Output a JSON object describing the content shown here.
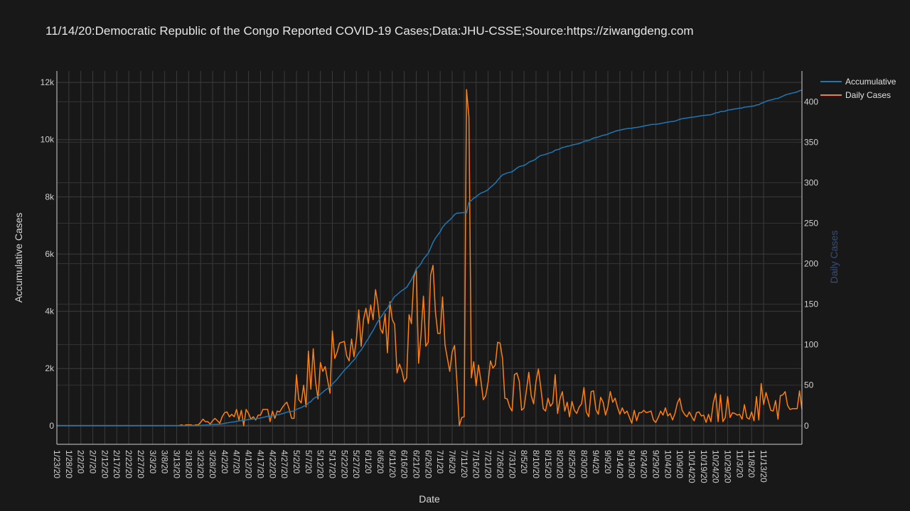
{
  "title": "11/14/20:Democratic Republic of the Congo Reported COVID-19 Cases;Data:JHU-CSSE;Source:https://ziwangdeng.com",
  "chart_data": {
    "type": "line",
    "xlabel": "Date",
    "ylabel": "Accumulative Cases",
    "y2label": "Daily Cases",
    "ylim": [
      -650,
      12400
    ],
    "y2lim": [
      -23,
      438
    ],
    "y_ticks": [
      0,
      2000,
      4000,
      6000,
      8000,
      10000,
      12000
    ],
    "y_tick_labels": [
      "0",
      "2k",
      "4k",
      "6k",
      "8k",
      "10k",
      "12k"
    ],
    "y2_ticks": [
      0,
      50,
      100,
      150,
      200,
      250,
      300,
      350,
      400
    ],
    "y2_tick_labels": [
      "0",
      "50",
      "100",
      "150",
      "200",
      "250",
      "300",
      "350",
      "400"
    ],
    "x_tick_labels": [
      "1/23/20",
      "1/28/20",
      "2/2/20",
      "2/7/20",
      "2/12/20",
      "2/17/20",
      "2/22/20",
      "2/27/20",
      "3/3/20",
      "3/8/20",
      "3/13/20",
      "3/18/20",
      "3/23/20",
      "3/28/20",
      "4/2/20",
      "4/7/20",
      "4/12/20",
      "4/17/20",
      "4/22/20",
      "4/27/20",
      "5/2/20",
      "5/7/20",
      "5/12/20",
      "5/17/20",
      "5/22/20",
      "5/27/20",
      "6/1/20",
      "6/6/20",
      "6/11/20",
      "6/16/20",
      "6/21/20",
      "6/26/20",
      "7/1/20",
      "7/6/20",
      "7/11/20",
      "7/16/20",
      "7/21/20",
      "7/26/20",
      "7/31/20",
      "8/5/20",
      "8/10/20",
      "8/15/20",
      "8/20/20",
      "8/25/20",
      "8/30/20",
      "9/4/20",
      "9/9/20",
      "9/14/20",
      "9/19/20",
      "9/24/20",
      "9/29/20",
      "10/4/20",
      "10/9/20",
      "10/14/20",
      "10/19/20",
      "10/24/20",
      "10/29/20",
      "11/3/20",
      "11/8/20",
      "11/13/20"
    ],
    "legend_position": "top-right",
    "grid": true,
    "colors": {
      "accumulative": "#1f77b4",
      "daily": "#ff7f0e",
      "y2label": "#34507a"
    },
    "series": [
      {
        "name": "Accumulative",
        "axis": "y",
        "x_start": "1/23/20",
        "values": [
          0,
          0,
          0,
          0,
          0,
          0,
          0,
          0,
          0,
          0,
          0,
          0,
          0,
          0,
          0,
          0,
          0,
          0,
          0,
          0,
          0,
          0,
          0,
          0,
          0,
          0,
          0,
          0,
          0,
          0,
          0,
          0,
          0,
          0,
          0,
          0,
          0,
          0,
          0,
          0,
          0,
          0,
          0,
          0,
          0,
          0,
          0,
          0,
          0,
          0,
          0,
          0,
          1,
          1,
          2,
          3,
          4,
          4,
          5,
          6,
          10,
          18,
          23,
          28,
          30,
          36,
          45,
          51,
          54,
          65,
          81,
          98,
          109,
          123,
          134,
          154,
          161,
          180,
          180,
          200,
          215,
          223,
          234,
          241,
          254,
          267,
          287,
          307,
          327,
          332,
          350,
          359,
          377,
          394,
          416,
          442,
          471,
          491,
          500,
          509,
          572,
          604,
          632,
          682,
          705,
          797,
          842,
          937,
          991,
          1024,
          1102,
          1169,
          1242,
          1298,
          1338,
          1455,
          1538,
          1629,
          1731,
          1835,
          1939,
          2025,
          2105,
          2212,
          2297,
          2403,
          2546,
          2644,
          2775,
          2920,
          3046,
          3195,
          3326,
          3494,
          3644,
          3764,
          3878,
          4016,
          4106,
          4259,
          4390,
          4515,
          4580,
          4656,
          4724,
          4778,
          4837,
          4974,
          5100,
          5283,
          5477,
          5554,
          5666,
          5826,
          5924,
          6027,
          6213,
          6411,
          6552,
          6666,
          6780,
          6939,
          7039,
          7122,
          7189,
          7280,
          7379,
          7432,
          7432,
          7442,
          7453,
          7432,
          7813,
          7872,
          7951,
          8000,
          8075,
          8130,
          8162,
          8199,
          8253,
          8333,
          8404,
          8479,
          8582,
          8684,
          8767,
          8801,
          8834,
          8857,
          8875,
          8938,
          9003,
          9058,
          9077,
          9099,
          9143,
          9209,
          9246,
          9273,
          9328,
          9398,
          9445,
          9466,
          9484,
          9518,
          9542,
          9570,
          9633,
          9648,
          9681,
          9723,
          9741,
          9770,
          9781,
          9811,
          9830,
          9845,
          9868,
          9895,
          9942,
          9959,
          9970,
          10012,
          10055,
          10075,
          10089,
          10124,
          10153,
          10166,
          10189,
          10231,
          10260,
          10294,
          10317,
          10331,
          10353,
          10368,
          10386,
          10396,
          10399,
          10418,
          10424,
          10440,
          10456,
          10475,
          10491,
          10508,
          10526,
          10533,
          10537,
          10547,
          10565,
          10578,
          10600,
          10612,
          10627,
          10634,
          10649,
          10677,
          10711,
          10730,
          10744,
          10755,
          10772,
          10783,
          10789,
          10805,
          10822,
          10834,
          10847,
          10851,
          10865,
          10870,
          10898,
          10938,
          10943,
          10981,
          10986,
          10996,
          11032,
          11042,
          11058,
          11073,
          11086,
          11100,
          11108,
          11134,
          11144,
          11152,
          11169,
          11175,
          11211,
          11218,
          11270,
          11296,
          11337,
          11367,
          11386,
          11404,
          11435,
          11443,
          11480,
          11518,
          11560,
          11585,
          11605,
          11626,
          11647,
          11668,
          11711,
          11731
        ]
      },
      {
        "name": "Daily Cases",
        "axis": "y2",
        "x_start": "1/23/20",
        "values": [
          0,
          0,
          0,
          0,
          0,
          0,
          0,
          0,
          0,
          0,
          0,
          0,
          0,
          0,
          0,
          0,
          0,
          0,
          0,
          0,
          0,
          0,
          0,
          0,
          0,
          0,
          0,
          0,
          0,
          0,
          0,
          0,
          0,
          0,
          0,
          0,
          0,
          0,
          0,
          0,
          0,
          0,
          0,
          0,
          0,
          0,
          0,
          0,
          0,
          0,
          0,
          0,
          1,
          0,
          1,
          1,
          1,
          0,
          1,
          1,
          4,
          8,
          5,
          5,
          2,
          6,
          9,
          6,
          3,
          11,
          16,
          17,
          11,
          14,
          11,
          20,
          7,
          19,
          0,
          20,
          15,
          8,
          11,
          7,
          13,
          13,
          20,
          20,
          20,
          5,
          18,
          9,
          18,
          17,
          22,
          26,
          29,
          20,
          9,
          9,
          63,
          32,
          28,
          50,
          23,
          92,
          45,
          95,
          54,
          33,
          78,
          67,
          73,
          56,
          40,
          117,
          83,
          91,
          102,
          103,
          104,
          86,
          80,
          107,
          85,
          106,
          143,
          98,
          131,
          145,
          126,
          149,
          131,
          168,
          150,
          120,
          114,
          138,
          90,
          153,
          131,
          125,
          65,
          76,
          68,
          54,
          59,
          137,
          126,
          183,
          194,
          77,
          112,
          160,
          98,
          103,
          186,
          198,
          141,
          114,
          114,
          159,
          100,
          83,
          67,
          91,
          99,
          53,
          0,
          10,
          11,
          415,
          381,
          59,
          79,
          49,
          75,
          55,
          32,
          37,
          54,
          80,
          71,
          75,
          103,
          102,
          83,
          34,
          33,
          23,
          18,
          63,
          65,
          55,
          19,
          22,
          44,
          66,
          37,
          27,
          55,
          70,
          47,
          21,
          18,
          34,
          24,
          28,
          63,
          15,
          33,
          42,
          18,
          29,
          11,
          30,
          19,
          15,
          23,
          27,
          47,
          17,
          11,
          42,
          43,
          20,
          14,
          35,
          29,
          13,
          23,
          42,
          29,
          34,
          23,
          14,
          22,
          15,
          18,
          10,
          3,
          19,
          6,
          16,
          16,
          19,
          16,
          17,
          18,
          7,
          4,
          10,
          18,
          13,
          22,
          12,
          15,
          7,
          15,
          28,
          34,
          19,
          14,
          11,
          17,
          11,
          6,
          16,
          17,
          12,
          13,
          4,
          14,
          5,
          28,
          40,
          5,
          38,
          5,
          10,
          36,
          10,
          16,
          15,
          13,
          14,
          8,
          26,
          10,
          8,
          17,
          6,
          36,
          7,
          52,
          26,
          41,
          30,
          19,
          18,
          31,
          8,
          37,
          38,
          42,
          25,
          20,
          21,
          21,
          21,
          43,
          20
        ]
      }
    ]
  }
}
